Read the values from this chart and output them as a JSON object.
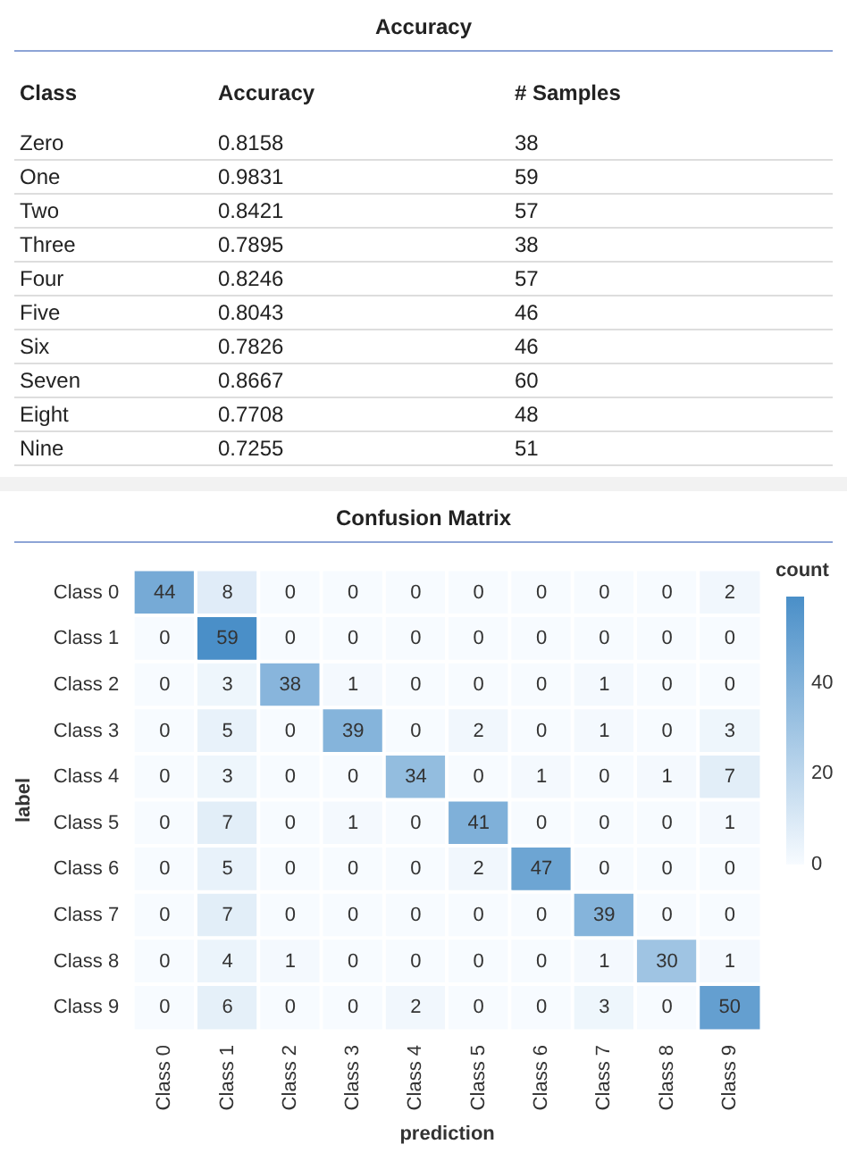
{
  "chart_data": [
    {
      "type": "other",
      "title": "Accuracy",
      "xlabel": "Class",
      "categories": [
        "Zero",
        "One",
        "Two",
        "Three",
        "Four",
        "Five",
        "Six",
        "Seven",
        "Eight",
        "Nine"
      ],
      "series": [
        {
          "name": "Accuracy",
          "values": [
            0.8158,
            0.9831,
            0.8421,
            0.7895,
            0.8246,
            0.8043,
            0.7826,
            0.8667,
            0.7708,
            0.7255
          ]
        },
        {
          "name": "# Samples",
          "values": [
            38,
            59,
            57,
            38,
            57,
            46,
            46,
            60,
            48,
            51
          ]
        }
      ],
      "data_labels": true
    },
    {
      "type": "heatmap",
      "title": "Confusion Matrix",
      "xlabel": "prediction",
      "ylabel": "label",
      "clabel": "count",
      "categories": [
        "Class 0",
        "Class 1",
        "Class 2",
        "Class 3",
        "Class 4",
        "Class 5",
        "Class 6",
        "Class 7",
        "Class 8",
        "Class 9"
      ],
      "y_categories": [
        "Class 0",
        "Class 1",
        "Class 2",
        "Class 3",
        "Class 4",
        "Class 5",
        "Class 6",
        "Class 7",
        "Class 8",
        "Class 9"
      ],
      "cells": [
        [
          44,
          8,
          0,
          0,
          0,
          0,
          0,
          0,
          0,
          2
        ],
        [
          0,
          59,
          0,
          0,
          0,
          0,
          0,
          0,
          0,
          0
        ],
        [
          0,
          3,
          38,
          1,
          0,
          0,
          0,
          1,
          0,
          0
        ],
        [
          0,
          5,
          0,
          39,
          0,
          2,
          0,
          1,
          0,
          3
        ],
        [
          0,
          3,
          0,
          0,
          34,
          0,
          1,
          0,
          1,
          7
        ],
        [
          0,
          7,
          0,
          1,
          0,
          41,
          0,
          0,
          0,
          1
        ],
        [
          0,
          5,
          0,
          0,
          0,
          2,
          47,
          0,
          0,
          0
        ],
        [
          0,
          7,
          0,
          0,
          0,
          0,
          0,
          39,
          0,
          0
        ],
        [
          0,
          4,
          1,
          0,
          0,
          0,
          0,
          1,
          30,
          1
        ],
        [
          0,
          6,
          0,
          0,
          2,
          0,
          0,
          3,
          0,
          50
        ]
      ],
      "clim": [
        0,
        59
      ],
      "cticks": [
        0,
        20,
        40
      ],
      "data_labels": true
    }
  ]
}
